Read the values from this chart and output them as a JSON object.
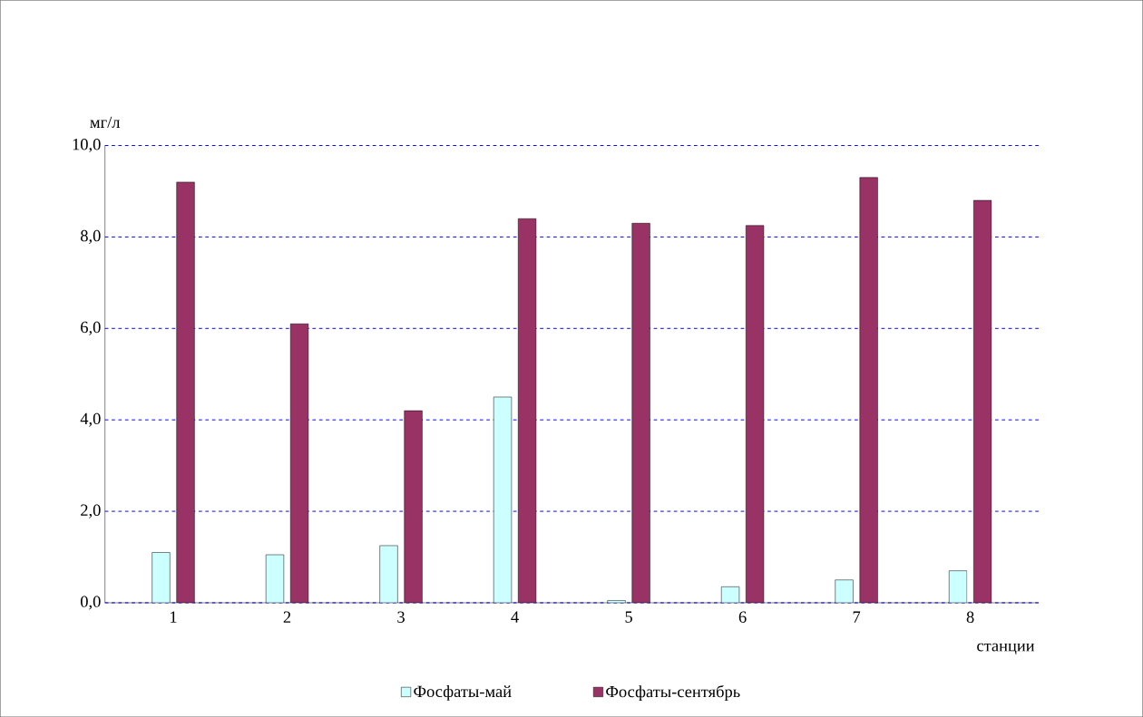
{
  "chart_data": {
    "type": "bar",
    "ylabel": "мг/л",
    "xlabel": "станции",
    "categories": [
      "1",
      "2",
      "3",
      "4",
      "5",
      "6",
      "7",
      "8"
    ],
    "series": [
      {
        "name": "Фосфаты-май",
        "color": "#ccffff",
        "values": [
          1.1,
          1.05,
          1.25,
          4.5,
          0.05,
          0.35,
          0.5,
          0.7
        ]
      },
      {
        "name": "Фосфаты-сентябрь",
        "color": "#993366",
        "values": [
          9.2,
          6.1,
          4.2,
          8.4,
          8.3,
          8.25,
          9.3,
          8.8
        ]
      }
    ],
    "ylim": [
      0,
      10
    ],
    "yticks": [
      {
        "value": 0,
        "label": "0,0"
      },
      {
        "value": 2,
        "label": "2,0"
      },
      {
        "value": 4,
        "label": "4,0"
      },
      {
        "value": 6,
        "label": "6,0"
      },
      {
        "value": 8,
        "label": "8,0"
      },
      {
        "value": 10,
        "label": "10,0"
      }
    ],
    "grid": "y",
    "legend": "bottom"
  }
}
